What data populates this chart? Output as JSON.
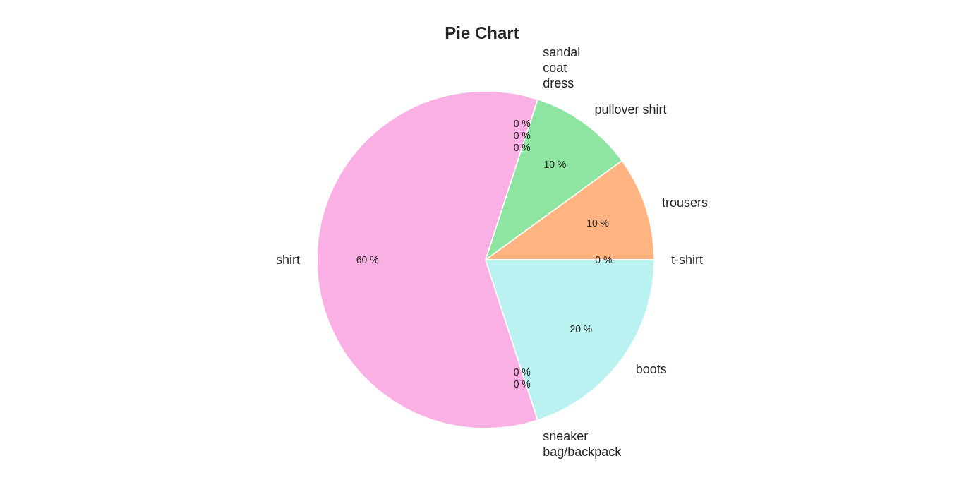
{
  "chart_data": {
    "type": "pie",
    "title": "Pie Chart",
    "categories": [
      "t-shirt",
      "trousers",
      "pullover shirt",
      "dress",
      "coat",
      "sandal",
      "shirt",
      "sneaker",
      "bag/backpack",
      "boots"
    ],
    "values": [
      0,
      10,
      10,
      0,
      0,
      0,
      60,
      0,
      0,
      20
    ],
    "colors": [
      "#a1c9f4",
      "#ffb482",
      "#8de5a1",
      "#ff9f9b",
      "#d0bbff",
      "#debb9b",
      "#fab0e4",
      "#cfcfcf",
      "#fffea3",
      "#b9f2f0"
    ],
    "value_labels": [
      "0 %",
      "10 %",
      "10 %",
      "0 %",
      "0 %",
      "0 %",
      "60 %",
      "0 %",
      "0 %",
      "20 %"
    ]
  }
}
